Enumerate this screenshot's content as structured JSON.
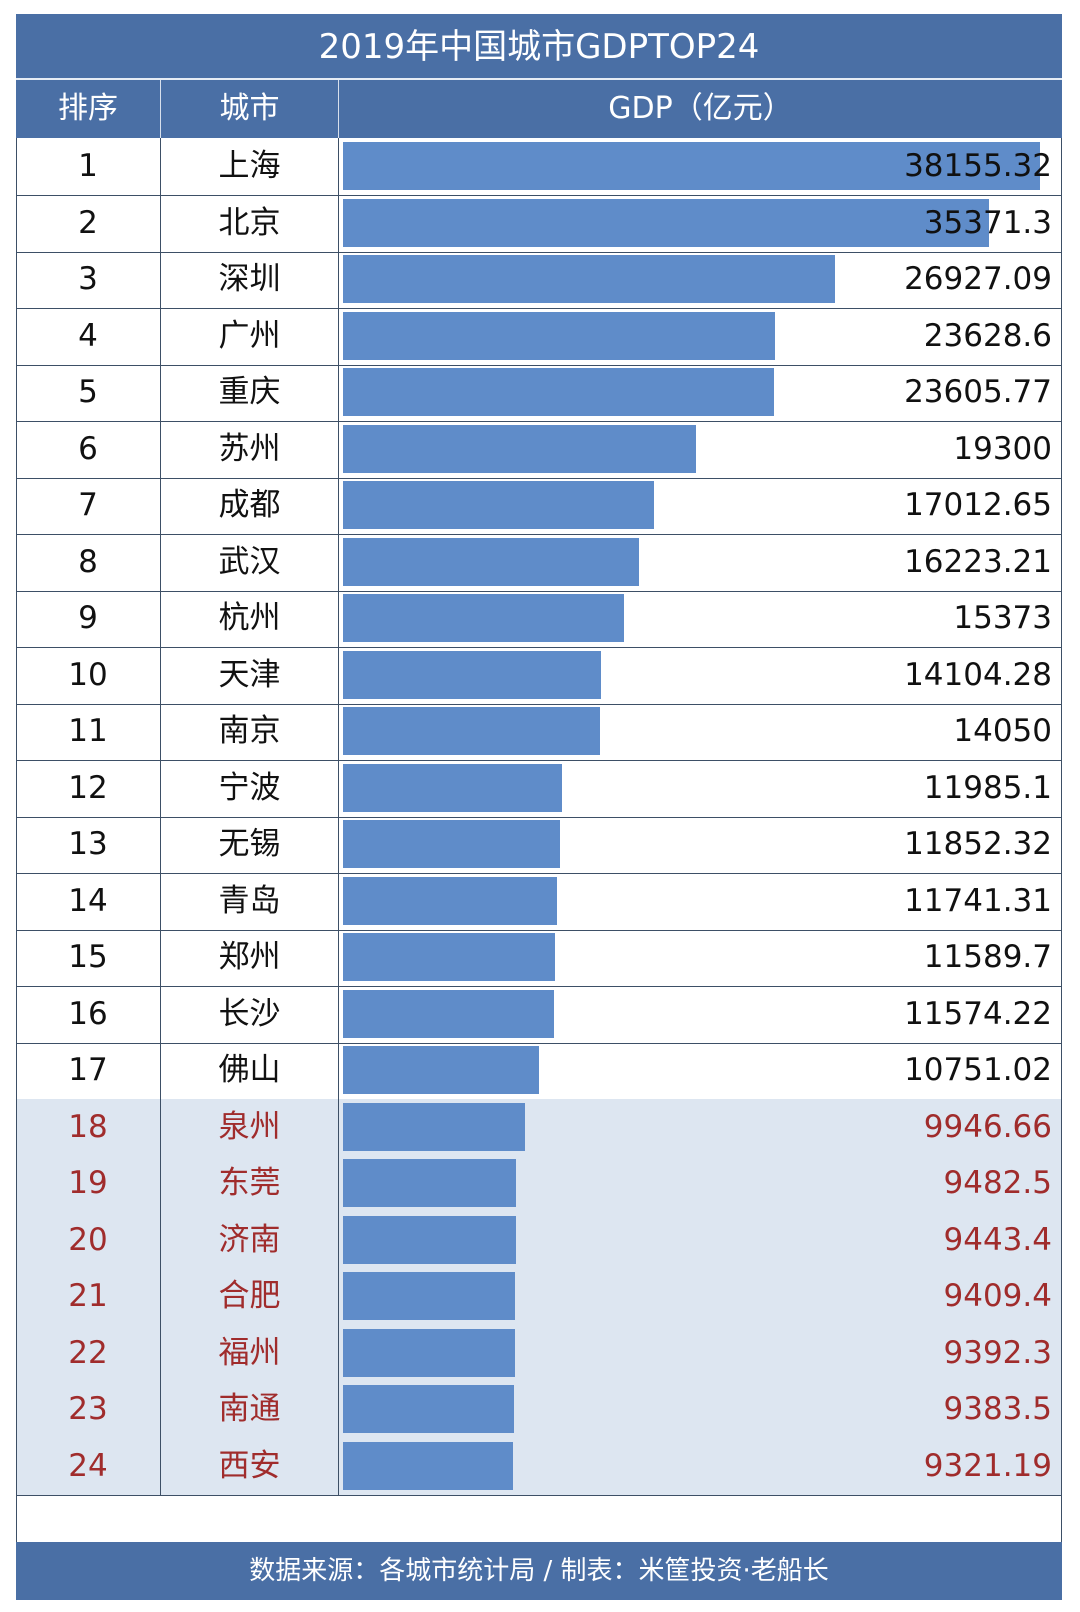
{
  "header": {
    "title": "2019年中国城市GDPTOP24",
    "col_rank": "排序",
    "col_city": "城市",
    "col_gdp": "GDP（亿元）"
  },
  "footer": {
    "source": "数据来源：各城市统计局 / 制表：米筐投资·老船长"
  },
  "colors": {
    "header_bg": "#4a6fa5",
    "bar": "#5f8cc9",
    "highlight_row_bg": "#dde6f1",
    "highlight_text": "#a02c2c"
  },
  "chart_data": {
    "type": "bar",
    "title": "2019年中国城市GDPTOP24",
    "ylabel": "GDP（亿元）",
    "rows": [
      {
        "rank": "1",
        "city": "上海",
        "value": 38155.32,
        "label": "38155.32",
        "highlight": false
      },
      {
        "rank": "2",
        "city": "北京",
        "value": 35371.3,
        "label": "35371.3",
        "highlight": false
      },
      {
        "rank": "3",
        "city": "深圳",
        "value": 26927.09,
        "label": "26927.09",
        "highlight": false
      },
      {
        "rank": "4",
        "city": "广州",
        "value": 23628.6,
        "label": "23628.6",
        "highlight": false
      },
      {
        "rank": "5",
        "city": "重庆",
        "value": 23605.77,
        "label": "23605.77",
        "highlight": false
      },
      {
        "rank": "6",
        "city": "苏州",
        "value": 19300,
        "label": "19300",
        "highlight": false
      },
      {
        "rank": "7",
        "city": "成都",
        "value": 17012.65,
        "label": "17012.65",
        "highlight": false
      },
      {
        "rank": "8",
        "city": "武汉",
        "value": 16223.21,
        "label": "16223.21",
        "highlight": false
      },
      {
        "rank": "9",
        "city": "杭州",
        "value": 15373,
        "label": "15373",
        "highlight": false
      },
      {
        "rank": "10",
        "city": "天津",
        "value": 14104.28,
        "label": "14104.28",
        "highlight": false
      },
      {
        "rank": "11",
        "city": "南京",
        "value": 14050,
        "label": "14050",
        "highlight": false
      },
      {
        "rank": "12",
        "city": "宁波",
        "value": 11985.1,
        "label": "11985.1",
        "highlight": false
      },
      {
        "rank": "13",
        "city": "无锡",
        "value": 11852.32,
        "label": "11852.32",
        "highlight": false
      },
      {
        "rank": "14",
        "city": "青岛",
        "value": 11741.31,
        "label": "11741.31",
        "highlight": false
      },
      {
        "rank": "15",
        "city": "郑州",
        "value": 11589.7,
        "label": "11589.7",
        "highlight": false
      },
      {
        "rank": "16",
        "city": "长沙",
        "value": 11574.22,
        "label": "11574.22",
        "highlight": false
      },
      {
        "rank": "17",
        "city": "佛山",
        "value": 10751.02,
        "label": "10751.02",
        "highlight": false
      },
      {
        "rank": "18",
        "city": "泉州",
        "value": 9946.66,
        "label": "9946.66",
        "highlight": true
      },
      {
        "rank": "19",
        "city": "东莞",
        "value": 9482.5,
        "label": "9482.5",
        "highlight": true
      },
      {
        "rank": "20",
        "city": "济南",
        "value": 9443.4,
        "label": "9443.4",
        "highlight": true
      },
      {
        "rank": "21",
        "city": "合肥",
        "value": 9409.4,
        "label": "9409.4",
        "highlight": true
      },
      {
        "rank": "22",
        "city": "福州",
        "value": 9392.3,
        "label": "9392.3",
        "highlight": true
      },
      {
        "rank": "23",
        "city": "南通",
        "value": 9383.5,
        "label": "9383.5",
        "highlight": true
      },
      {
        "rank": "24",
        "city": "西安",
        "value": 9321.19,
        "label": "9321.19",
        "highlight": true
      }
    ],
    "max_value": 38155.32
  }
}
